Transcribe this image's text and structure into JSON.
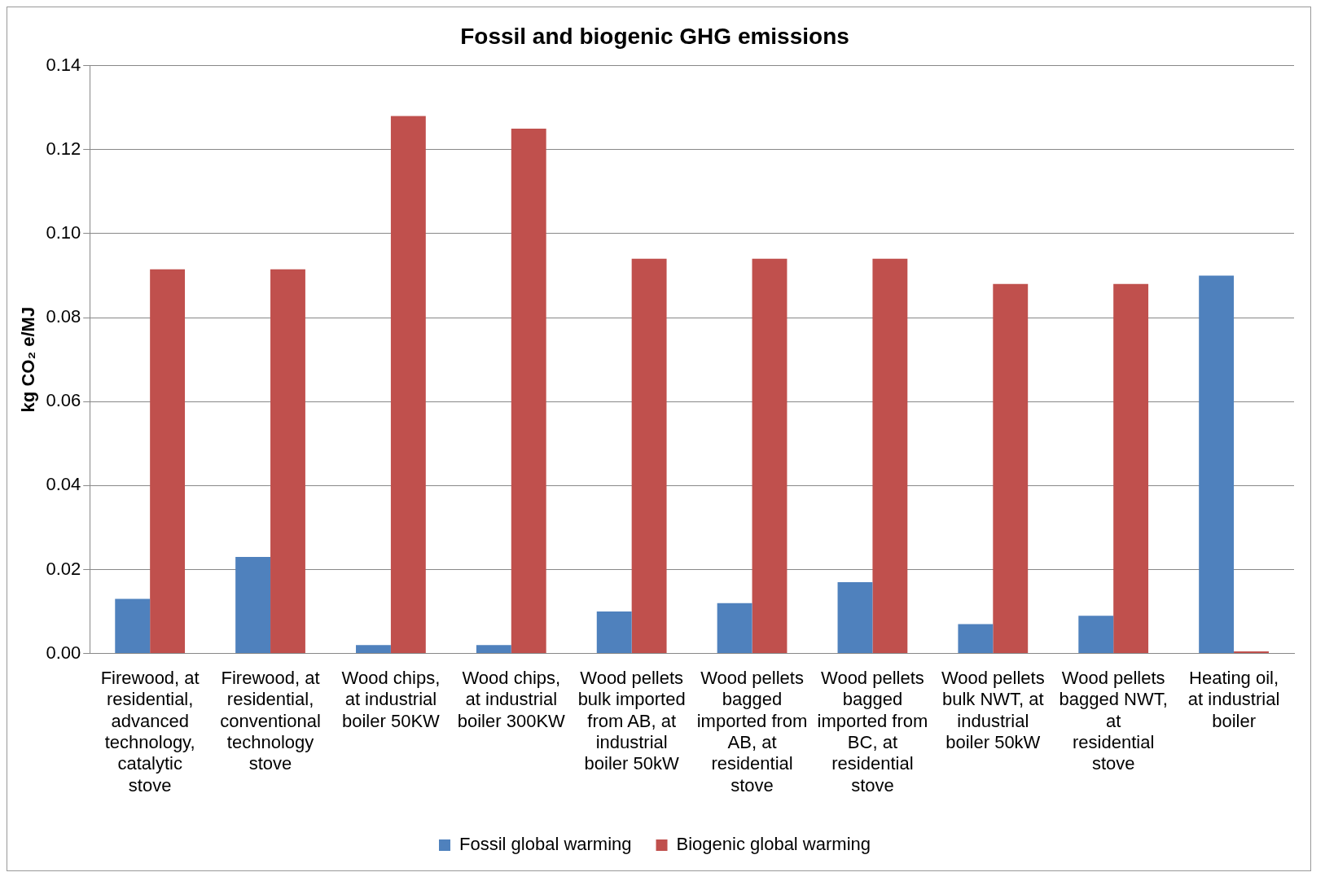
{
  "chart_data": {
    "type": "bar",
    "title": "Fossil and biogenic GHG emissions",
    "ylabel": "kg CO₂ e/MJ",
    "categories": [
      "Firewood, at residential, advanced technology, catalytic stove",
      "Firewood, at residential, conventional technology stove",
      "Wood chips, at industrial boiler 50KW",
      "Wood chips, at industrial boiler 300KW",
      "Wood pellets bulk imported from AB, at industrial boiler 50kW",
      "Wood pellets bagged imported from AB, at residential stove",
      "Wood pellets bagged imported from BC, at residential stove",
      "Wood pellets bulk NWT, at industrial boiler 50kW",
      "Wood pellets bagged NWT, at residential stove",
      "Heating oil, at industrial boiler"
    ],
    "series": [
      {
        "name": "Fossil global warming",
        "color": "#4f81bd",
        "values": [
          0.013,
          0.023,
          0.002,
          0.002,
          0.01,
          0.012,
          0.017,
          0.007,
          0.009,
          0.09
        ]
      },
      {
        "name": "Biogenic global warming",
        "color": "#c0504d",
        "values": [
          0.0915,
          0.0915,
          0.128,
          0.125,
          0.094,
          0.094,
          0.094,
          0.088,
          0.088,
          0.0005
        ]
      }
    ],
    "ylim": [
      0,
      0.14
    ],
    "yticks": [
      {
        "value": 0,
        "label": "0.00"
      },
      {
        "value": 0.02,
        "label": "0.02"
      },
      {
        "value": 0.04,
        "label": "0.04"
      },
      {
        "value": 0.06,
        "label": "0.06"
      },
      {
        "value": 0.08,
        "label": "0.08"
      },
      {
        "value": 0.1,
        "label": "0.10"
      },
      {
        "value": 0.12,
        "label": "0.12"
      },
      {
        "value": 0.14,
        "label": "0.14"
      }
    ],
    "grid": "y",
    "legend": "bottom"
  }
}
